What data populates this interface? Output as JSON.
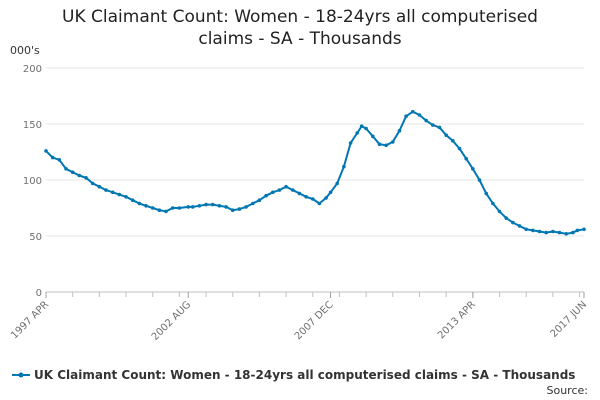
{
  "chart_data": {
    "type": "line",
    "title_line1": "UK Claimant Count: Women - 18-24yrs all computerised",
    "title_line2": "claims - SA - Thousands",
    "ylabel": "000's",
    "ylim": [
      0,
      200
    ],
    "yticks": [
      0,
      50,
      100,
      150,
      200
    ],
    "x_start": "1997 APR",
    "x_end": "2017 JUN",
    "xtick_labels": [
      "1997 APR",
      "2002 AUG",
      "2007 DEC",
      "2013 APR",
      "2017 JUN"
    ],
    "grid": true,
    "legend_position": "bottom",
    "color": "#0077b3",
    "series": [
      {
        "name": "UK Claimant Count: Women - 18-24yrs all computerised claims - SA - Thousands",
        "x": [
          "1997-04",
          "1997-07",
          "1997-10",
          "1998-01",
          "1998-04",
          "1998-07",
          "1998-10",
          "1999-01",
          "1999-04",
          "1999-07",
          "1999-10",
          "2000-01",
          "2000-04",
          "2000-07",
          "2000-10",
          "2001-01",
          "2001-04",
          "2001-07",
          "2001-10",
          "2002-01",
          "2002-04",
          "2002-08",
          "2002-10",
          "2003-01",
          "2003-04",
          "2003-07",
          "2003-10",
          "2004-01",
          "2004-04",
          "2004-07",
          "2004-10",
          "2005-01",
          "2005-04",
          "2005-07",
          "2005-10",
          "2006-01",
          "2006-04",
          "2006-07",
          "2006-10",
          "2007-01",
          "2007-04",
          "2007-07",
          "2007-10",
          "2007-12",
          "2008-03",
          "2008-06",
          "2008-09",
          "2008-12",
          "2009-02",
          "2009-04",
          "2009-07",
          "2009-10",
          "2010-01",
          "2010-04",
          "2010-07",
          "2010-10",
          "2011-01",
          "2011-04",
          "2011-07",
          "2011-10",
          "2012-01",
          "2012-04",
          "2012-07",
          "2012-10",
          "2013-01",
          "2013-04",
          "2013-07",
          "2013-10",
          "2014-01",
          "2014-04",
          "2014-07",
          "2014-10",
          "2015-01",
          "2015-04",
          "2015-07",
          "2015-10",
          "2016-01",
          "2016-04",
          "2016-07",
          "2016-10",
          "2017-01",
          "2017-03",
          "2017-06"
        ],
        "values": [
          126,
          120,
          118,
          110,
          107,
          104,
          102,
          97,
          94,
          91,
          89,
          87,
          85,
          82,
          79,
          77,
          75,
          73,
          72,
          75,
          75,
          76,
          76,
          77,
          78,
          78,
          77,
          76,
          73,
          74,
          76,
          79,
          82,
          86,
          89,
          91,
          94,
          91,
          88,
          85,
          83,
          79,
          84,
          89,
          97,
          112,
          133,
          142,
          148,
          146,
          139,
          132,
          131,
          134,
          144,
          157,
          161,
          158,
          153,
          149,
          147,
          140,
          135,
          128,
          119,
          110,
          100,
          88,
          79,
          72,
          66,
          62,
          59,
          56,
          55,
          54,
          53,
          54,
          53,
          52,
          53,
          55,
          56
        ]
      }
    ]
  },
  "source_label": "Source:"
}
